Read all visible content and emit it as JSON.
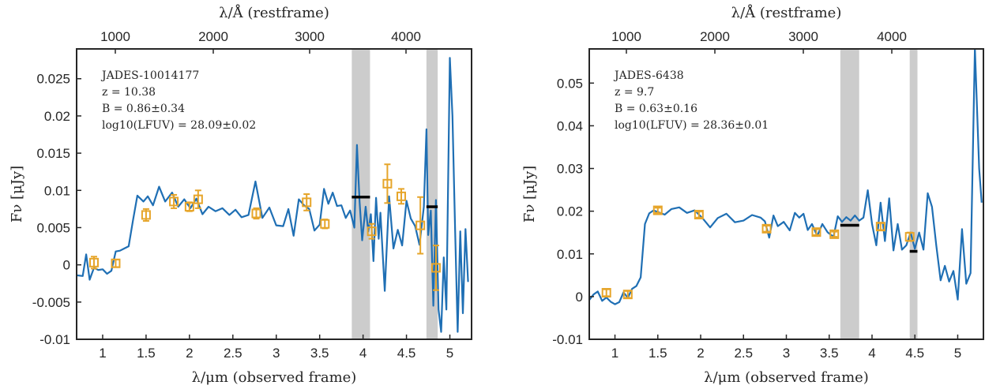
{
  "chart_data": [
    {
      "type": "line",
      "top_xlabel": "λ/Å (restframe)",
      "top_ticks": [
        1000,
        2000,
        3000,
        4000
      ],
      "xlabel": "λ/μm (observed frame)",
      "ylabel": "Fν [μJy]",
      "xlim": [
        0.7,
        5.25
      ],
      "ylim": [
        -0.01,
        0.029
      ],
      "xticks": [
        1,
        1.5,
        2,
        2.5,
        3,
        3.5,
        4,
        4.5,
        5
      ],
      "xtick_labels": [
        "1",
        "1.5",
        "2",
        "2.5",
        "3",
        "3.5",
        "4",
        "4.5",
        "5"
      ],
      "yticks": [
        -0.01,
        -0.005,
        0,
        0.005,
        0.01,
        0.015,
        0.02,
        0.025
      ],
      "ytick_labels": [
        "-0.01",
        "-0.005",
        "0",
        "0.005",
        "0.01",
        "0.015",
        "0.02",
        "0.025"
      ],
      "annotations": [
        "JADES-10014177",
        "z = 10.38",
        "B = 0.86±0.34",
        "log10(LFUV) = 28.09±0.02"
      ],
      "bands": [
        [
          3.87,
          4.08
        ],
        [
          4.73,
          4.86
        ]
      ],
      "colors": {
        "spectrum": "#1f6fb4",
        "photometry": "#e6a52a",
        "band": "#cccccc",
        "mean": "#000000"
      },
      "spectrum": {
        "x": [
          0.7,
          0.77,
          0.81,
          0.85,
          0.9,
          0.95,
          1.0,
          1.05,
          1.1,
          1.15,
          1.2,
          1.25,
          1.3,
          1.35,
          1.4,
          1.47,
          1.52,
          1.58,
          1.65,
          1.72,
          1.8,
          1.87,
          1.94,
          2.01,
          2.08,
          2.15,
          2.22,
          2.3,
          2.38,
          2.46,
          2.53,
          2.6,
          2.68,
          2.76,
          2.84,
          2.92,
          3.0,
          3.08,
          3.14,
          3.2,
          3.26,
          3.32,
          3.38,
          3.44,
          3.5,
          3.55,
          3.6,
          3.65,
          3.7,
          3.75,
          3.8,
          3.85,
          3.9,
          3.93,
          3.96,
          3.99,
          4.03,
          4.06,
          4.09,
          4.12,
          4.15,
          4.18,
          4.2,
          4.25,
          4.3,
          4.35,
          4.4,
          4.45,
          4.5,
          4.55,
          4.6,
          4.65,
          4.7,
          4.73,
          4.75,
          4.78,
          4.81,
          4.84,
          4.87,
          4.9,
          4.93,
          4.96,
          5.0,
          5.03,
          5.06,
          5.09,
          5.12,
          5.15,
          5.18,
          5.21
        ],
        "y": [
          -0.0014,
          -0.0015,
          0.0014,
          -0.002,
          -0.0004,
          -0.0007,
          -0.0006,
          -0.0012,
          -0.0008,
          0.0018,
          0.0019,
          0.0022,
          0.0025,
          0.006,
          0.0093,
          0.0085,
          0.0092,
          0.008,
          0.0105,
          0.0085,
          0.0097,
          0.0078,
          0.0088,
          0.0076,
          0.0089,
          0.0068,
          0.0078,
          0.0072,
          0.0076,
          0.0067,
          0.0074,
          0.0064,
          0.0067,
          0.0112,
          0.0063,
          0.0077,
          0.0053,
          0.0052,
          0.0075,
          0.0039,
          0.0088,
          0.008,
          0.0075,
          0.0046,
          0.0054,
          0.0102,
          0.0082,
          0.0097,
          0.0079,
          0.008,
          0.0063,
          0.0073,
          0.005,
          0.0161,
          0.0085,
          0.0033,
          0.0078,
          0.0045,
          0.0068,
          0.0005,
          0.009,
          0.0035,
          0.007,
          -0.0035,
          0.0092,
          0.0022,
          0.0047,
          0.0026,
          0.0086,
          0.0062,
          0.0052,
          0.0027,
          0.0078,
          0.0182,
          0.004,
          0.0073,
          -0.0055,
          0.0087,
          -0.006,
          -0.009,
          0.001,
          -0.006,
          0.0278,
          0.02,
          0.005,
          -0.009,
          0.0045,
          -0.0065,
          0.0048,
          -0.0023
        ]
      },
      "photometry": [
        {
          "x": 0.9,
          "y": 0.0003,
          "err": 0.0008
        },
        {
          "x": 1.15,
          "y": 0.0002,
          "err": 0.0005
        },
        {
          "x": 1.5,
          "y": 0.0067,
          "err": 0.0008
        },
        {
          "x": 1.82,
          "y": 0.0085,
          "err": 0.0009
        },
        {
          "x": 2.0,
          "y": 0.0078,
          "err": 0.0006
        },
        {
          "x": 2.1,
          "y": 0.0088,
          "err": 0.0012
        },
        {
          "x": 2.77,
          "y": 0.0069,
          "err": 0.0007
        },
        {
          "x": 3.35,
          "y": 0.0084,
          "err": 0.0011
        },
        {
          "x": 3.56,
          "y": 0.0055,
          "err": 0.0006
        },
        {
          "x": 4.1,
          "y": 0.0045,
          "err": 0.001
        },
        {
          "x": 4.28,
          "y": 0.0109,
          "err": 0.0026
        },
        {
          "x": 4.44,
          "y": 0.0092,
          "err": 0.001
        },
        {
          "x": 4.66,
          "y": 0.0053,
          "err": 0.0038
        },
        {
          "x": 4.84,
          "y": -0.0004,
          "err": 0.003
        }
      ],
      "means": [
        {
          "x0": 3.87,
          "x1": 4.08,
          "y": 0.0091
        },
        {
          "x0": 4.73,
          "x1": 4.86,
          "y": 0.0078
        }
      ]
    },
    {
      "type": "line",
      "top_xlabel": "λ/Å (restframe)",
      "top_ticks": [
        1000,
        2000,
        3000,
        4000
      ],
      "xlabel": "λ/μm (observed frame)",
      "ylabel": "Fν [μJy]",
      "xlim": [
        0.7,
        5.3
      ],
      "ylim": [
        -0.01,
        0.058
      ],
      "xticks": [
        1,
        1.5,
        2,
        2.5,
        3,
        3.5,
        4,
        4.5,
        5
      ],
      "xtick_labels": [
        "1",
        "1.5",
        "2",
        "2.5",
        "3",
        "3.5",
        "4",
        "4.5",
        "5"
      ],
      "yticks": [
        -0.01,
        0,
        0.01,
        0.02,
        0.03,
        0.04,
        0.05
      ],
      "ytick_labels": [
        "-0.01",
        "0",
        "0.01",
        "0.02",
        "0.03",
        "0.04",
        "0.05"
      ],
      "annotations": [
        "JADES-6438",
        "z = 9.7",
        "B = 0.63±0.16",
        "log10(LFUV) = 28.36±0.01"
      ],
      "bands": [
        [
          3.63,
          3.85
        ],
        [
          4.44,
          4.53
        ]
      ],
      "colors": {
        "spectrum": "#1f6fb4",
        "photometry": "#e6a52a",
        "band": "#cccccc",
        "mean": "#000000"
      },
      "spectrum": {
        "x": [
          0.7,
          0.75,
          0.8,
          0.85,
          0.9,
          0.95,
          1.0,
          1.05,
          1.1,
          1.15,
          1.2,
          1.25,
          1.3,
          1.35,
          1.4,
          1.45,
          1.5,
          1.58,
          1.66,
          1.75,
          1.84,
          1.93,
          2.02,
          2.11,
          2.2,
          2.3,
          2.4,
          2.5,
          2.6,
          2.7,
          2.75,
          2.8,
          2.85,
          2.9,
          2.97,
          3.04,
          3.1,
          3.15,
          3.2,
          3.25,
          3.3,
          3.36,
          3.42,
          3.48,
          3.55,
          3.6,
          3.65,
          3.7,
          3.75,
          3.8,
          3.85,
          3.9,
          3.95,
          4.0,
          4.05,
          4.1,
          4.15,
          4.2,
          4.25,
          4.3,
          4.35,
          4.4,
          4.45,
          4.5,
          4.55,
          4.6,
          4.65,
          4.7,
          4.75,
          4.8,
          4.85,
          4.9,
          4.95,
          5.0,
          5.05,
          5.1,
          5.15,
          5.2,
          5.25,
          5.28
        ],
        "y": [
          -0.0008,
          0.0005,
          0.0012,
          -0.001,
          -0.0002,
          -0.0012,
          -0.0018,
          -0.0013,
          0.001,
          -0.0003,
          0.0018,
          0.0025,
          0.0045,
          0.017,
          0.0195,
          0.0202,
          0.0198,
          0.0192,
          0.0205,
          0.0209,
          0.0196,
          0.0202,
          0.0184,
          0.0162,
          0.0184,
          0.0194,
          0.0174,
          0.0178,
          0.0191,
          0.0185,
          0.0176,
          0.0138,
          0.019,
          0.0165,
          0.0175,
          0.0155,
          0.0196,
          0.0185,
          0.0194,
          0.0156,
          0.017,
          0.0142,
          0.017,
          0.0151,
          0.014,
          0.0188,
          0.0175,
          0.0186,
          0.0178,
          0.019,
          0.0178,
          0.0185,
          0.0249,
          0.017,
          0.012,
          0.022,
          0.013,
          0.023,
          0.0108,
          0.017,
          0.011,
          0.012,
          0.015,
          0.0112,
          0.015,
          0.011,
          0.0242,
          0.021,
          0.012,
          0.0038,
          0.0072,
          0.0035,
          0.006,
          -0.0007,
          0.0158,
          0.003,
          0.0055,
          0.0582,
          0.03,
          0.022
        ]
      },
      "photometry": [
        {
          "x": 0.9,
          "y": 0.0009,
          "err": 0.0008
        },
        {
          "x": 1.15,
          "y": 0.0005,
          "err": 0.0008
        },
        {
          "x": 1.5,
          "y": 0.0202,
          "err": 0.0006
        },
        {
          "x": 1.98,
          "y": 0.0192,
          "err": 0.0007
        },
        {
          "x": 2.77,
          "y": 0.0159,
          "err": 0.0007
        },
        {
          "x": 3.35,
          "y": 0.0151,
          "err": 0.0007
        },
        {
          "x": 3.56,
          "y": 0.0146,
          "err": 0.0006
        },
        {
          "x": 4.1,
          "y": 0.0164,
          "err": 0.0008
        },
        {
          "x": 4.44,
          "y": 0.014,
          "err": 0.001
        }
      ],
      "means": [
        {
          "x0": 3.63,
          "x1": 3.85,
          "y": 0.0167
        },
        {
          "x0": 4.44,
          "x1": 4.53,
          "y": 0.0106
        }
      ]
    }
  ]
}
